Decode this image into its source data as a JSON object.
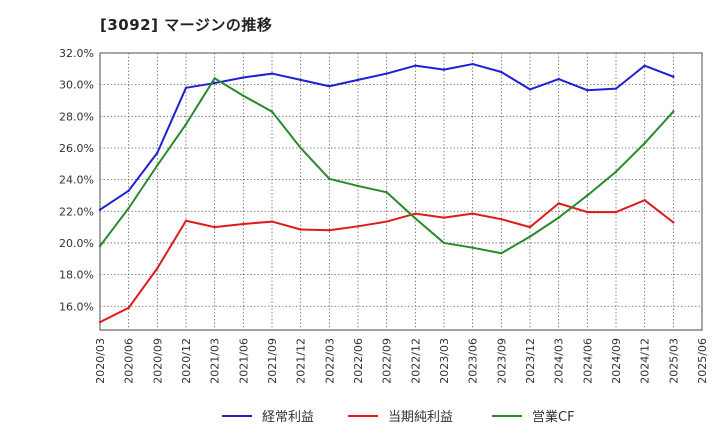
{
  "chart_data": {
    "type": "line",
    "title": "[3092]  マージンの推移",
    "xlabel": "",
    "ylabel": "",
    "ylim": [
      14.5,
      32.0
    ],
    "yticks": [
      "16.0%",
      "18.0%",
      "20.0%",
      "22.0%",
      "24.0%",
      "26.0%",
      "28.0%",
      "30.0%",
      "32.0%"
    ],
    "ytick_values": [
      16,
      18,
      20,
      22,
      24,
      26,
      28,
      30,
      32
    ],
    "categories": [
      "2020/03",
      "2020/06",
      "2020/09",
      "2020/12",
      "2021/03",
      "2021/06",
      "2021/09",
      "2021/12",
      "2022/03",
      "2022/06",
      "2022/09",
      "2022/12",
      "2023/03",
      "2023/06",
      "2023/09",
      "2023/12",
      "2024/03",
      "2024/06",
      "2024/09",
      "2024/12",
      "2025/03",
      "2025/06"
    ],
    "grid": true,
    "legend_position": "bottom",
    "series": [
      {
        "name": "経常利益",
        "color": "#1f1fd6",
        "values": [
          22.1,
          23.3,
          25.7,
          29.8,
          30.1,
          30.45,
          30.7,
          30.3,
          29.9,
          30.3,
          30.7,
          31.2,
          30.95,
          31.3,
          30.8,
          29.7,
          30.35,
          29.65,
          29.75,
          31.2,
          30.5,
          null
        ]
      },
      {
        "name": "当期純利益",
        "color": "#e01a1a",
        "values": [
          15.0,
          15.9,
          18.4,
          21.4,
          21.0,
          21.2,
          21.35,
          20.85,
          20.8,
          21.05,
          21.35,
          21.85,
          21.6,
          21.85,
          21.5,
          21.0,
          22.5,
          21.95,
          21.95,
          22.7,
          21.3,
          null
        ]
      },
      {
        "name": "営業CF",
        "color": "#2a8a2a",
        "values": [
          19.8,
          22.2,
          24.9,
          27.5,
          30.4,
          29.3,
          28.3,
          26.0,
          24.05,
          23.6,
          23.2,
          21.55,
          20.0,
          19.7,
          19.35,
          20.4,
          21.6,
          23.0,
          24.5,
          26.3,
          28.3,
          null
        ]
      }
    ]
  }
}
